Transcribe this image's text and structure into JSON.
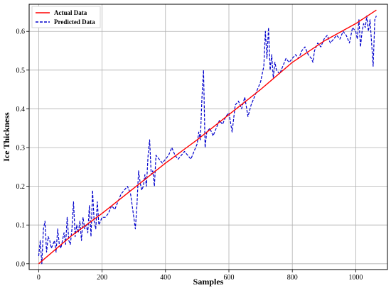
{
  "chart_data": {
    "type": "line",
    "title": "",
    "xlabel": "Samples",
    "ylabel": "Ice Thickness",
    "xlim": [
      -30,
      1100
    ],
    "ylim": [
      -0.015,
      0.67
    ],
    "xticks": [
      0,
      200,
      400,
      600,
      800,
      1000
    ],
    "yticks": [
      0.0,
      0.1,
      0.2,
      0.3,
      0.4,
      0.5,
      0.6
    ],
    "xtick_labels": [
      "0",
      "200",
      "400",
      "600",
      "800",
      "1000"
    ],
    "ytick_labels": [
      "0.0",
      "0.1",
      "0.2",
      "0.3",
      "0.4",
      "0.5",
      "0.6"
    ],
    "grid": true,
    "legend_position": "top-left",
    "series": [
      {
        "name": "Actual Data",
        "color": "#ff0000",
        "style": "solid",
        "x": [
          0,
          100,
          200,
          300,
          400,
          500,
          600,
          700,
          800,
          900,
          1000,
          1065
        ],
        "y": [
          0.0,
          0.07,
          0.13,
          0.195,
          0.26,
          0.32,
          0.385,
          0.45,
          0.52,
          0.575,
          0.62,
          0.655
        ]
      },
      {
        "name": "Predicted Data",
        "color": "#0000cc",
        "style": "dashed",
        "x": [
          0,
          5,
          10,
          15,
          20,
          25,
          30,
          35,
          40,
          45,
          50,
          55,
          60,
          65,
          70,
          75,
          80,
          85,
          90,
          95,
          100,
          105,
          110,
          115,
          120,
          125,
          130,
          135,
          140,
          145,
          150,
          155,
          160,
          165,
          170,
          175,
          180,
          185,
          190,
          200,
          210,
          220,
          230,
          240,
          250,
          260,
          270,
          280,
          290,
          300,
          305,
          310,
          315,
          320,
          325,
          330,
          335,
          340,
          345,
          350,
          355,
          360,
          365,
          370,
          380,
          390,
          400,
          410,
          420,
          430,
          440,
          450,
          460,
          470,
          480,
          490,
          500,
          505,
          510,
          515,
          520,
          525,
          530,
          540,
          550,
          560,
          570,
          580,
          590,
          600,
          610,
          620,
          630,
          640,
          650,
          660,
          670,
          680,
          690,
          700,
          710,
          715,
          720,
          725,
          730,
          735,
          740,
          745,
          750,
          760,
          770,
          780,
          790,
          800,
          810,
          820,
          830,
          840,
          850,
          860,
          865,
          870,
          880,
          890,
          900,
          910,
          920,
          930,
          940,
          950,
          960,
          970,
          980,
          990,
          1000,
          1005,
          1010,
          1015,
          1020,
          1025,
          1030,
          1035,
          1040,
          1045,
          1050,
          1055,
          1060,
          1065
        ],
        "y": [
          0.02,
          0.06,
          0.0,
          0.09,
          0.11,
          0.03,
          0.07,
          0.06,
          0.04,
          0.05,
          0.06,
          0.03,
          0.09,
          0.05,
          0.04,
          0.06,
          0.08,
          0.05,
          0.12,
          0.06,
          0.05,
          0.09,
          0.16,
          0.07,
          0.1,
          0.08,
          0.11,
          0.06,
          0.12,
          0.09,
          0.1,
          0.08,
          0.15,
          0.07,
          0.19,
          0.11,
          0.09,
          0.16,
          0.1,
          0.12,
          0.12,
          0.13,
          0.15,
          0.14,
          0.16,
          0.18,
          0.19,
          0.2,
          0.18,
          0.12,
          0.09,
          0.15,
          0.24,
          0.21,
          0.19,
          0.2,
          0.23,
          0.2,
          0.28,
          0.32,
          0.23,
          0.24,
          0.2,
          0.28,
          0.27,
          0.26,
          0.27,
          0.28,
          0.3,
          0.28,
          0.27,
          0.28,
          0.29,
          0.28,
          0.27,
          0.29,
          0.31,
          0.34,
          0.32,
          0.43,
          0.5,
          0.3,
          0.34,
          0.35,
          0.33,
          0.35,
          0.37,
          0.36,
          0.38,
          0.39,
          0.34,
          0.41,
          0.42,
          0.4,
          0.43,
          0.38,
          0.41,
          0.43,
          0.45,
          0.47,
          0.51,
          0.6,
          0.53,
          0.61,
          0.5,
          0.54,
          0.48,
          0.52,
          0.5,
          0.49,
          0.51,
          0.53,
          0.52,
          0.53,
          0.54,
          0.53,
          0.55,
          0.56,
          0.54,
          0.53,
          0.52,
          0.55,
          0.57,
          0.56,
          0.58,
          0.59,
          0.57,
          0.58,
          0.59,
          0.58,
          0.6,
          0.59,
          0.57,
          0.61,
          0.6,
          0.58,
          0.63,
          0.56,
          0.6,
          0.62,
          0.61,
          0.64,
          0.6,
          0.63,
          0.57,
          0.51,
          0.63,
          0.64
        ]
      }
    ]
  }
}
